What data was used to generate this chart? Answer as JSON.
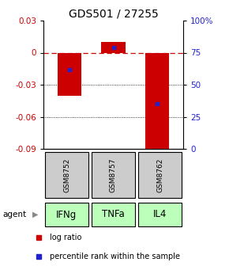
{
  "title": "GDS501 / 27255",
  "samples": [
    "GSM8752",
    "GSM8757",
    "GSM8762"
  ],
  "agents": [
    "IFNg",
    "TNFa",
    "IL4"
  ],
  "log_ratios": [
    -0.04,
    0.01,
    -0.091
  ],
  "percentile_ranks": [
    62,
    79,
    35
  ],
  "ylim_left": [
    -0.09,
    0.03
  ],
  "yticks_left": [
    0.03,
    0.0,
    -0.03,
    -0.06,
    -0.09
  ],
  "yticks_right": [
    100,
    75,
    50,
    25,
    0
  ],
  "bar_color": "#cc0000",
  "marker_color": "#2222cc",
  "dashed_line_color": "#cc0000",
  "agent_bg_color": "#bbffbb",
  "sample_bg_color": "#cccccc",
  "background_color": "#ffffff",
  "title_fontsize": 10,
  "axis_fontsize": 7.5,
  "sample_fontsize": 6.5,
  "agent_fontsize": 8.5,
  "legend_fontsize": 7
}
